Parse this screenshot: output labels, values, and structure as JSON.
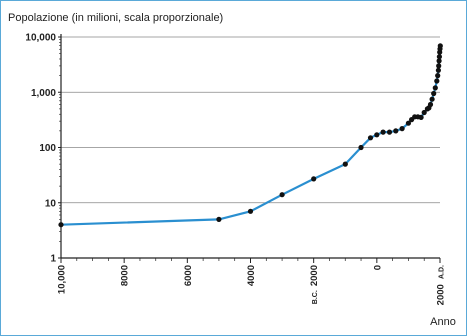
{
  "chart_data": {
    "type": "line",
    "title": "",
    "ylabel": "Popolazione (in milioni, scala proporzionale)",
    "xlabel": "Anno",
    "yscale": "log",
    "ylim": [
      1,
      10000
    ],
    "xlim": [
      -10000,
      2000
    ],
    "grid": "horizontal",
    "line_color": "#2a8fd0",
    "marker_color": "#111111",
    "yticks": [
      {
        "value": 1,
        "label": "1"
      },
      {
        "value": 10,
        "label": "10"
      },
      {
        "value": 100,
        "label": "100"
      },
      {
        "value": 1000,
        "label": "1,000"
      },
      {
        "value": 10000,
        "label": "10,000"
      }
    ],
    "xticks": [
      {
        "value": -10000,
        "label": "10,000"
      },
      {
        "value": -8000,
        "label": "8000"
      },
      {
        "value": -6000,
        "label": "6000"
      },
      {
        "value": -4000,
        "label": "4000"
      },
      {
        "value": -2000,
        "label": "2000",
        "suffix": "B.C."
      },
      {
        "value": 0,
        "label": "0"
      },
      {
        "value": 2000,
        "label": "2000",
        "prefix": "A.D."
      }
    ],
    "series": [
      {
        "x": [
          -10000,
          -5000,
          -4000,
          -3000,
          -2000,
          -1000,
          -500,
          -200,
          0,
          200,
          400,
          600,
          800,
          1000,
          1100,
          1200,
          1300,
          1400,
          1500,
          1600,
          1650,
          1700,
          1750,
          1800,
          1850,
          1900,
          1927,
          1950,
          1960,
          1970,
          1980,
          1990,
          2000,
          2010
        ],
        "y": [
          4,
          5,
          7,
          14,
          27,
          50,
          100,
          150,
          170,
          190,
          190,
          200,
          220,
          275,
          320,
          360,
          360,
          350,
          430,
          500,
          520,
          600,
          750,
          950,
          1200,
          1600,
          2000,
          2500,
          3000,
          3700,
          4400,
          5300,
          6100,
          6900
        ]
      }
    ]
  }
}
